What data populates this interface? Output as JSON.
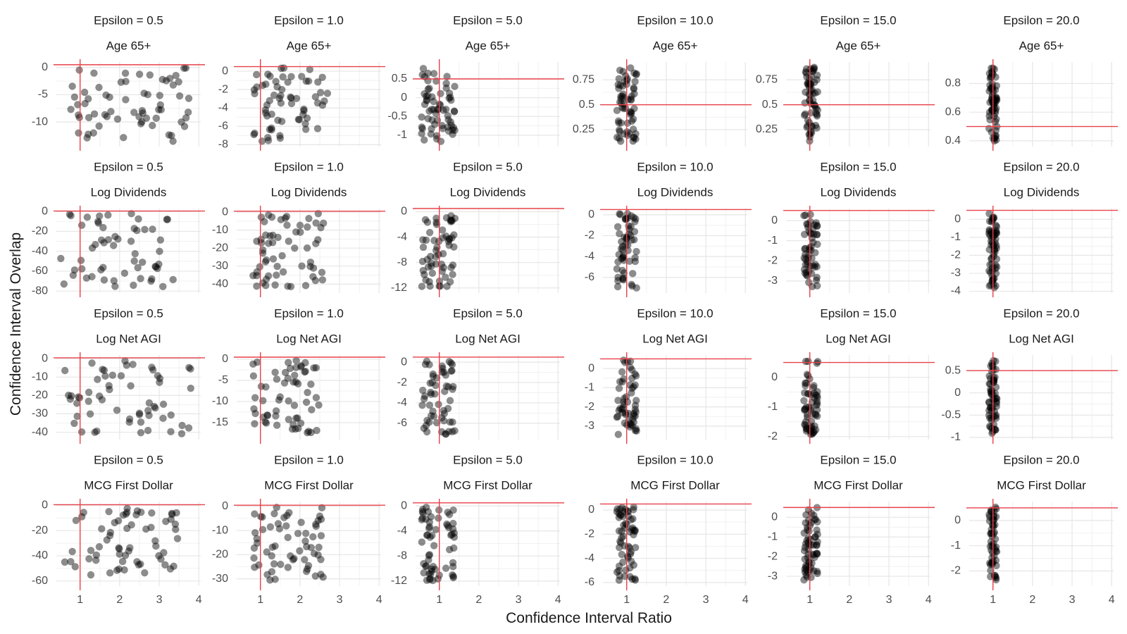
{
  "chart_data": {
    "type": "scatter",
    "xlabel": "Confidence Interval Ratio",
    "ylabel": "Confidence Interval Overlap",
    "xlim": [
      0.4,
      4.05
    ],
    "x_ticks": [
      1,
      2,
      3,
      4
    ],
    "epsilons": [
      "Epsilon = 0.5",
      "Epsilon = 1.0",
      "Epsilon = 5.0",
      "Epsilon = 10.0",
      "Epsilon = 15.0",
      "Epsilon = 20.0"
    ],
    "reference_lines": {
      "x": 1,
      "y": 0.5,
      "color": "#e8414a"
    },
    "point_color": "#000000",
    "point_opacity": 0.45,
    "grid": true,
    "rows": [
      {
        "variable": "Age 65+",
        "panels": [
          {
            "epsilon": "Epsilon = 0.5",
            "ylim": [
              -14.5,
              1.0
            ],
            "y_ticks": [
              0,
              -5,
              -10
            ],
            "x_range": [
              0.5,
              3.8
            ]
          },
          {
            "epsilon": "Epsilon = 1.0",
            "ylim": [
              -8.2,
              1.0
            ],
            "y_ticks": [
              0,
              -2,
              -4,
              -6,
              -8
            ],
            "x_range": [
              0.8,
              2.7
            ]
          },
          {
            "epsilon": "Epsilon = 5.0",
            "ylim": [
              -1.3,
              0.95
            ],
            "y_ticks": [
              0.5,
              0.0,
              -0.5,
              -1.0
            ],
            "x_range": [
              0.55,
              1.4
            ]
          },
          {
            "epsilon": "Epsilon = 10.0",
            "ylim": [
              0.08,
              0.93
            ],
            "y_ticks": [
              0.75,
              0.5,
              0.25
            ],
            "x_range": [
              0.75,
              1.25
            ]
          },
          {
            "epsilon": "Epsilon = 15.0",
            "ylim": [
              0.08,
              0.93
            ],
            "y_ticks": [
              0.75,
              0.5,
              0.25
            ],
            "x_range": [
              0.85,
              1.2
            ]
          },
          {
            "epsilon": "Epsilon = 20.0",
            "ylim": [
              0.36,
              0.95
            ],
            "y_ticks": [
              0.8,
              0.6,
              0.4
            ],
            "x_range": [
              0.9,
              1.1
            ]
          }
        ]
      },
      {
        "variable": "Log Dividends",
        "panels": [
          {
            "epsilon": "Epsilon = 0.5",
            "ylim": [
              -82,
              3
            ],
            "y_ticks": [
              0,
              -20,
              -40,
              -60,
              -80
            ],
            "x_range": [
              0.5,
              3.4
            ]
          },
          {
            "epsilon": "Epsilon = 1.0",
            "ylim": [
              -45,
              2
            ],
            "y_ticks": [
              0,
              -10,
              -20,
              -30,
              -40
            ],
            "x_range": [
              0.8,
              2.6
            ]
          },
          {
            "epsilon": "Epsilon = 5.0",
            "ylim": [
              -12.8,
              0.5
            ],
            "y_ticks": [
              0,
              -4,
              -8,
              -12
            ],
            "x_range": [
              0.55,
              1.4
            ]
          },
          {
            "epsilon": "Epsilon = 10.0",
            "ylim": [
              -7.5,
              0.6
            ],
            "y_ticks": [
              0,
              -2,
              -4,
              -6
            ],
            "x_range": [
              0.75,
              1.25
            ]
          },
          {
            "epsilon": "Epsilon = 15.0",
            "ylim": [
              -3.6,
              0.6
            ],
            "y_ticks": [
              0,
              -1,
              -2,
              -3
            ],
            "x_range": [
              0.85,
              1.2
            ]
          },
          {
            "epsilon": "Epsilon = 20.0",
            "ylim": [
              -4.1,
              0.6
            ],
            "y_ticks": [
              0,
              -1,
              -2,
              -3,
              -4
            ],
            "x_range": [
              0.9,
              1.1
            ]
          }
        ]
      },
      {
        "variable": "Log Net AGI",
        "panels": [
          {
            "epsilon": "Epsilon = 0.5",
            "ylim": [
              -44,
              2
            ],
            "y_ticks": [
              0,
              -10,
              -20,
              -30,
              -40
            ],
            "x_range": [
              0.6,
              3.8
            ]
          },
          {
            "epsilon": "Epsilon = 1.0",
            "ylim": [
              -19,
              1
            ],
            "y_ticks": [
              0,
              -5,
              -10,
              -15
            ],
            "x_range": [
              0.8,
              2.6
            ]
          },
          {
            "epsilon": "Epsilon = 5.0",
            "ylim": [
              -7.6,
              0.7
            ],
            "y_ticks": [
              0,
              -2,
              -4,
              -6
            ],
            "x_range": [
              0.55,
              1.4
            ]
          },
          {
            "epsilon": "Epsilon = 10.0",
            "ylim": [
              -3.7,
              0.7
            ],
            "y_ticks": [
              0,
              -1,
              -2,
              -3
            ],
            "x_range": [
              0.75,
              1.25
            ]
          },
          {
            "epsilon": "Epsilon = 15.0",
            "ylim": [
              -2.1,
              0.75
            ],
            "y_ticks": [
              0,
              -1,
              -2
            ],
            "x_range": [
              0.85,
              1.2
            ]
          },
          {
            "epsilon": "Epsilon = 20.0",
            "ylim": [
              -1.05,
              0.85
            ],
            "y_ticks": [
              0.5,
              0.0,
              -0.5,
              -1.0
            ],
            "x_range": [
              0.9,
              1.1
            ]
          }
        ]
      },
      {
        "variable": "MCG First Dollar",
        "panels": [
          {
            "epsilon": "Epsilon = 0.5",
            "ylim": [
              -64,
              3
            ],
            "y_ticks": [
              0,
              -20,
              -40,
              -60
            ],
            "x_range": [
              0.6,
              3.5
            ]
          },
          {
            "epsilon": "Epsilon = 1.0",
            "ylim": [
              -33,
              2
            ],
            "y_ticks": [
              0,
              -10,
              -20,
              -30
            ],
            "x_range": [
              0.8,
              2.6
            ]
          },
          {
            "epsilon": "Epsilon = 5.0",
            "ylim": [
              -12.8,
              0.7
            ],
            "y_ticks": [
              0,
              -4,
              -8,
              -12
            ],
            "x_range": [
              0.55,
              1.4
            ]
          },
          {
            "epsilon": "Epsilon = 10.0",
            "ylim": [
              -6.3,
              0.7
            ],
            "y_ticks": [
              0,
              -2,
              -4,
              -6
            ],
            "x_range": [
              0.75,
              1.25
            ]
          },
          {
            "epsilon": "Epsilon = 15.0",
            "ylim": [
              -3.5,
              0.8
            ],
            "y_ticks": [
              0,
              -1,
              -2,
              -3
            ],
            "x_range": [
              0.85,
              1.2
            ]
          },
          {
            "epsilon": "Epsilon = 20.0",
            "ylim": [
              -2.6,
              0.75
            ],
            "y_ticks": [
              0,
              -1,
              -2
            ],
            "x_range": [
              0.9,
              1.1
            ]
          }
        ]
      }
    ]
  }
}
